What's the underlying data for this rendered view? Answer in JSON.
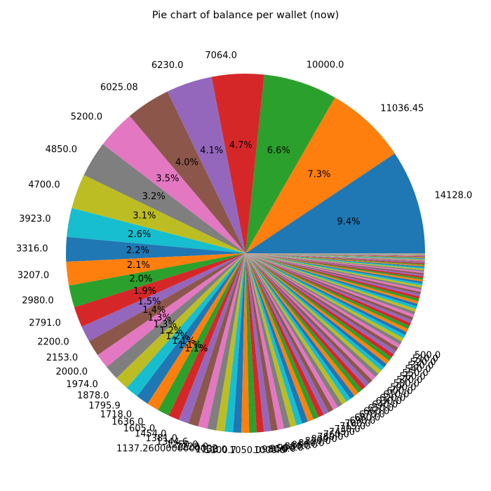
{
  "chart_data": {
    "type": "pie",
    "title": "Pie chart of balance per wallet (now)",
    "start_angle_deg": 0,
    "direction": "counterclockwise",
    "autopct_format": "%.1f%%",
    "autopct_min_percent": 1.0,
    "colors": [
      "#1f77b4",
      "#ff7f0e",
      "#2ca02c",
      "#d62728",
      "#9467bd",
      "#8c564b",
      "#e377c2",
      "#7f7f7f",
      "#bcbd22",
      "#17becf"
    ],
    "labeled_slices": [
      {
        "label": "14128.0",
        "value": 14128.0
      },
      {
        "label": "11036.45",
        "value": 11036.45
      },
      {
        "label": "10000.0",
        "value": 10000.0
      },
      {
        "label": "7064.0",
        "value": 7064.0
      },
      {
        "label": "6230.0",
        "value": 6230.0
      },
      {
        "label": "6025.08",
        "value": 6025.08
      },
      {
        "label": "5200.0",
        "value": 5200.0
      },
      {
        "label": "4850.0",
        "value": 4850.0
      },
      {
        "label": "4700.0",
        "value": 4700.0
      },
      {
        "label": "3923.0",
        "value": 3923.0
      },
      {
        "label": "3316.0",
        "value": 3316.0
      },
      {
        "label": "3207.0",
        "value": 3207.0
      },
      {
        "label": "2980.0",
        "value": 2980.0
      },
      {
        "label": "2791.0",
        "value": 2791.0
      },
      {
        "label": "2200.0",
        "value": 2200.0
      },
      {
        "label": "2153.0",
        "value": 2153.0
      },
      {
        "label": "2000.0",
        "value": 2000.0
      },
      {
        "label": "1974.0",
        "value": 1974.0
      },
      {
        "label": "1878.0",
        "value": 1878.0
      },
      {
        "label": "1795.9",
        "value": 1795.9
      },
      {
        "label": "1718.0",
        "value": 1718.0
      },
      {
        "label": "1636.0",
        "value": 1636.0
      },
      {
        "label": "1605.0",
        "value": 1605.0
      },
      {
        "label": "1454.0",
        "value": 1454.0
      },
      {
        "label": "1381.0",
        "value": 1381.0
      },
      {
        "label": "1344.6",
        "value": 1344.6
      },
      {
        "label": "1250.0",
        "value": 1250.0
      },
      {
        "label": "1228.0",
        "value": 1228.0
      },
      {
        "label": "1137.2600000000002",
        "value": 1137.26
      },
      {
        "label": "1138.0",
        "value": 1138.0
      },
      {
        "label": "1100.7",
        "value": 1100.7
      },
      {
        "label": "1050.0",
        "value": 1050.0
      },
      {
        "label": "1000.0",
        "value": 1000.0
      },
      {
        "label": "980.0",
        "value": 980.0
      },
      {
        "label": "950.0",
        "value": 950.0
      },
      {
        "label": "900.0",
        "value": 900.0
      },
      {
        "label": "880.0",
        "value": 880.0
      },
      {
        "label": "860.0",
        "value": 860.0
      },
      {
        "label": "840.0",
        "value": 840.0
      },
      {
        "label": "820.0",
        "value": 820.0
      },
      {
        "label": "800.0",
        "value": 800.0
      },
      {
        "label": "780.0",
        "value": 780.0
      },
      {
        "label": "760.0",
        "value": 760.0
      },
      {
        "label": "745.0",
        "value": 745.0
      },
      {
        "label": "730.0",
        "value": 730.0
      },
      {
        "label": "715.0",
        "value": 715.0
      },
      {
        "label": "700.0",
        "value": 700.0
      },
      {
        "label": "690.0",
        "value": 690.0
      },
      {
        "label": "680.0",
        "value": 680.0
      },
      {
        "label": "670.0",
        "value": 670.0
      },
      {
        "label": "660.0",
        "value": 660.0
      },
      {
        "label": "650.0",
        "value": 650.0
      },
      {
        "label": "640.0",
        "value": 640.0
      },
      {
        "label": "630.0",
        "value": 630.0
      },
      {
        "label": "620.0",
        "value": 620.0
      },
      {
        "label": "610.0",
        "value": 610.0
      },
      {
        "label": "600.0",
        "value": 600.0
      },
      {
        "label": "590.0",
        "value": 590.0
      },
      {
        "label": "580.0",
        "value": 580.0
      },
      {
        "label": "570.0",
        "value": 570.0
      },
      {
        "label": "560.0",
        "value": 560.0
      },
      {
        "label": "550.0",
        "value": 550.0
      },
      {
        "label": "540.0",
        "value": 540.0
      },
      {
        "label": "530.0",
        "value": 530.0
      },
      {
        "label": "520.0",
        "value": 520.0
      },
      {
        "label": "510.0",
        "value": 510.0
      },
      {
        "label": "500.0",
        "value": 500.0
      }
    ],
    "small_slice_values": [
      490,
      480,
      470,
      460,
      450,
      440,
      430,
      420,
      410,
      400,
      390,
      380,
      370,
      360,
      350,
      340,
      330,
      320,
      310,
      300,
      290,
      280,
      270,
      260,
      250,
      240,
      230,
      220,
      210,
      200,
      190,
      180,
      170,
      160,
      150,
      140,
      130,
      120,
      110,
      100,
      95,
      90,
      85,
      80,
      75,
      70,
      65,
      60,
      55,
      50,
      45,
      40,
      35,
      30,
      25,
      20,
      18,
      16,
      14,
      12,
      10,
      8,
      6,
      4,
      2
    ]
  }
}
